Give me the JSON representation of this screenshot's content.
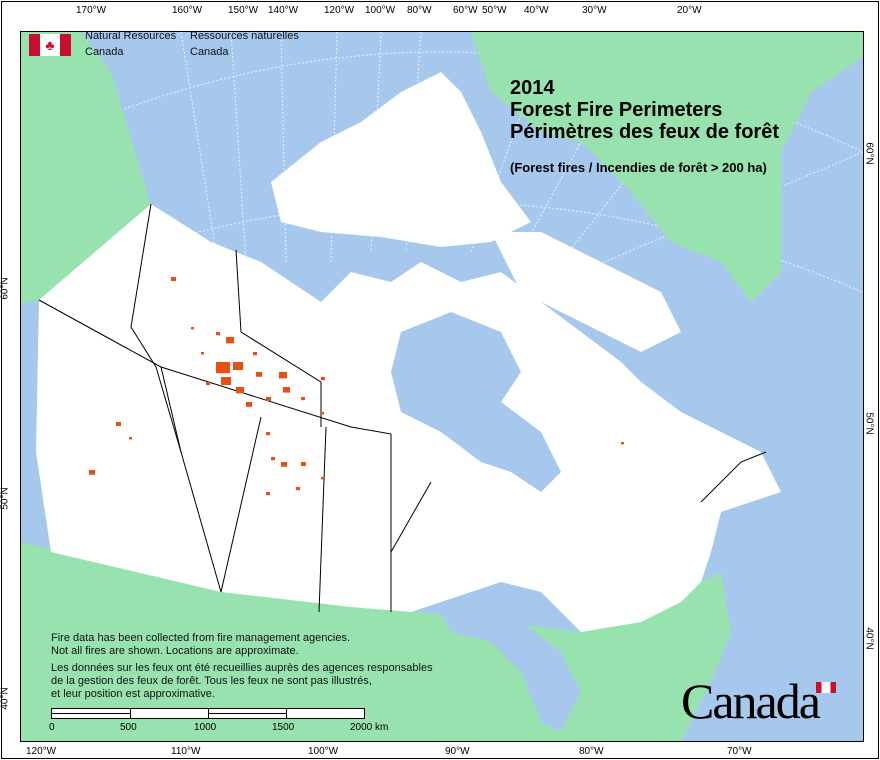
{
  "header": {
    "org_en": "Natural Resources",
    "org_en2": "Canada",
    "org_fr": "Ressources naturelles",
    "org_fr2": "Canada"
  },
  "title": {
    "year": "2014",
    "line_en": "Forest Fire Perimeters",
    "line_fr": "Périmètres des feux de forêt",
    "subtitle": "(Forest fires / Incendies de forêt > 200 ha)"
  },
  "note": {
    "en1": "Fire data has been collected from fire management agencies.",
    "en2": "Not all fires are shown. Locations are approximate.",
    "fr1": "Les données sur les feux ont été recueillies auprès des agences responsables",
    "fr2": "de la gestion des feux de forêt. Tous les feux ne sont pas illustrés,",
    "fr3": "et leur position est approximative."
  },
  "scale_bar": {
    "labels": [
      "0",
      "500",
      "1000",
      "1500",
      "2000 km"
    ]
  },
  "wordmark": "Canada",
  "top_ticks": [
    "170°W",
    "160°W",
    "150°W",
    "140°W",
    "120°W",
    "100°W",
    "80°W",
    "60°W",
    "50°W",
    "40°W",
    "30°W",
    "20°W"
  ],
  "bottom_ticks": [
    "120°W",
    "110°W",
    "100°W",
    "90°W",
    "80°W",
    "70°W"
  ],
  "left_ticks": [
    "60°N",
    "50°N",
    "40°N"
  ],
  "right_ticks": [
    "60°N",
    "50°N",
    "40°N"
  ],
  "colors": {
    "water": "#a6c8ec",
    "canada_land": "#ffffff",
    "other_land": "#98e2b0",
    "fire": "#e8500f",
    "flag_red": "#c8102e"
  }
}
